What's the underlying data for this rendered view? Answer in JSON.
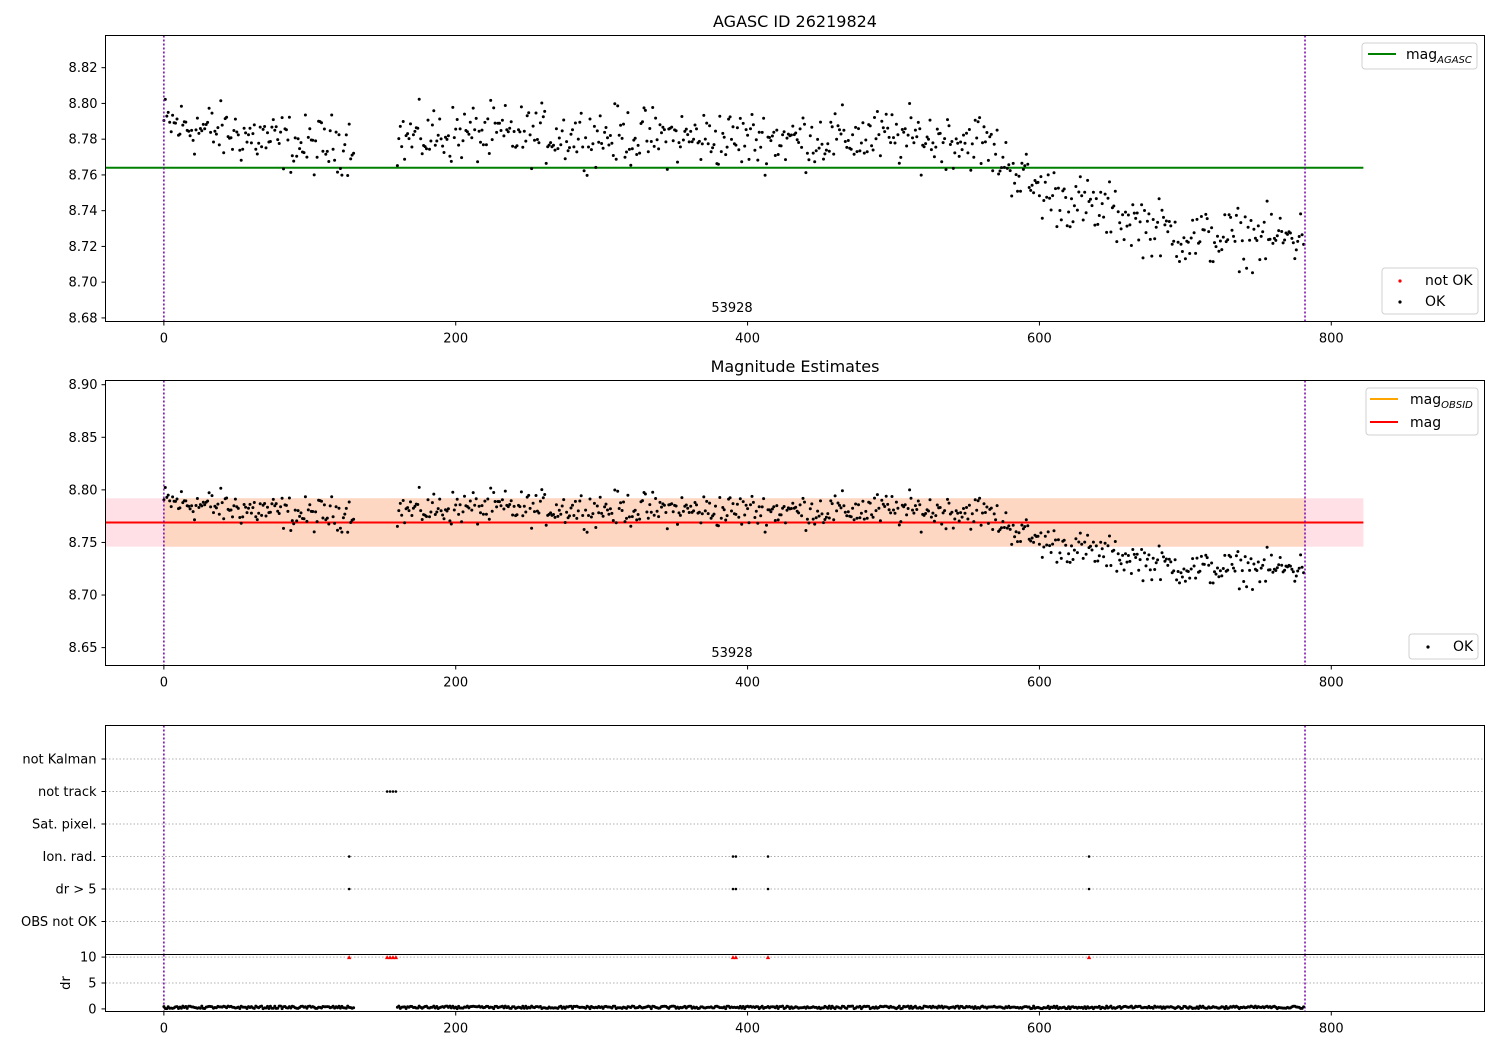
{
  "colors": {
    "points": "#000000",
    "not_ok_points": "#ff0000",
    "agasc_line": "#008000",
    "obsid_line": "#ffa500",
    "mag_line": "#ff0000",
    "band_outer": "#ffe0e6",
    "band_inner": "#fdd7c2",
    "vline": "#7a00a8",
    "grid": "#b0b0b0"
  },
  "chart_data": [
    {
      "type": "scatter",
      "title": "AGASC ID 26219824",
      "annotation": "53928",
      "xlim": [
        -40,
        905
      ],
      "ylim": [
        8.678,
        8.838
      ],
      "xticks": [
        0,
        200,
        400,
        600,
        800
      ],
      "yticks": [
        8.68,
        8.7,
        8.72,
        8.74,
        8.76,
        8.78,
        8.8,
        8.82
      ],
      "yticklabels": [
        "8.68",
        "8.70",
        "8.72",
        "8.74",
        "8.76",
        "8.78",
        "8.80",
        "8.82"
      ],
      "vlines": [
        0,
        782
      ],
      "hlines": [
        {
          "y": 8.764,
          "x0": -40,
          "x1": 822,
          "label": "mag",
          "sub": "AGASC"
        }
      ],
      "series": [
        {
          "name": "not OK",
          "n": 0
        },
        {
          "name": "OK",
          "n": 782,
          "trend": [
            [
              0,
              8.789
            ],
            [
              100,
              8.776
            ],
            [
              200,
              8.783
            ],
            [
              300,
              8.782
            ],
            [
              400,
              8.78
            ],
            [
              500,
              8.781
            ],
            [
              560,
              8.779
            ],
            [
              600,
              8.751
            ],
            [
              650,
              8.738
            ],
            [
              700,
              8.725
            ],
            [
              782,
              8.725
            ]
          ],
          "spread": 0.0105
        }
      ],
      "legend": [
        "not OK",
        "OK"
      ]
    },
    {
      "type": "scatter",
      "title": "Magnitude Estimates",
      "annotation": "53928",
      "xlim": [
        -40,
        905
      ],
      "ylim": [
        8.633,
        8.904
      ],
      "xticks": [
        0,
        200,
        400,
        600,
        800
      ],
      "yticks": [
        8.65,
        8.7,
        8.75,
        8.8,
        8.85,
        8.9
      ],
      "yticklabels": [
        "8.65",
        "8.70",
        "8.75",
        "8.80",
        "8.85",
        "8.90"
      ],
      "vlines": [
        0,
        782
      ],
      "hlines": [
        {
          "y": 8.769,
          "x0": -40,
          "x1": 822,
          "label": "mag"
        },
        {
          "y": 8.769,
          "x0": 0,
          "x1": 782,
          "label": "mag",
          "sub": "OBSID"
        }
      ],
      "bands": [
        {
          "y0": 8.746,
          "y1": 8.792,
          "x0": -40,
          "x1": 822
        },
        {
          "y0": 8.746,
          "y1": 8.792,
          "x0": 0,
          "x1": 782
        }
      ],
      "series": [
        {
          "name": "OK",
          "n": 782,
          "trend": [
            [
              0,
              8.789
            ],
            [
              100,
              8.776
            ],
            [
              200,
              8.783
            ],
            [
              300,
              8.782
            ],
            [
              400,
              8.78
            ],
            [
              500,
              8.781
            ],
            [
              560,
              8.779
            ],
            [
              600,
              8.751
            ],
            [
              650,
              8.738
            ],
            [
              700,
              8.725
            ],
            [
              782,
              8.725
            ]
          ],
          "spread": 0.0105
        }
      ],
      "legend": [
        "mag_OBSID",
        "mag"
      ]
    },
    {
      "type": "scatter",
      "title": "",
      "xlim": [
        -40,
        905
      ],
      "xticks": [
        0,
        200,
        400,
        600,
        800
      ],
      "vlines": [
        0,
        782
      ],
      "categories": [
        "not Kalman",
        "not track",
        "Sat. pixel.",
        "Ion. rad.",
        "dr > 5",
        "OBS not OK"
      ],
      "flags": {
        "not Kalman": [],
        "not track": [
          153,
          155,
          157,
          159
        ],
        "Sat. pixel.": [],
        "Ion. rad.": [
          127,
          390,
          392,
          414,
          634
        ],
        "dr > 5": [
          127,
          390,
          392,
          414,
          634
        ],
        "OBS not OK": []
      },
      "dr": {
        "ylabel": "dr",
        "ylim": [
          -0.5,
          10.5
        ],
        "yticks": [
          0,
          5,
          10
        ],
        "yticklabels": [
          "0",
          "5",
          "10"
        ],
        "gap": [
          130,
          160
        ],
        "clipped_at": 10,
        "clipped_x": [
          127,
          153,
          155,
          157,
          159,
          390,
          392,
          414,
          634
        ],
        "typical": 0.3
      }
    }
  ]
}
